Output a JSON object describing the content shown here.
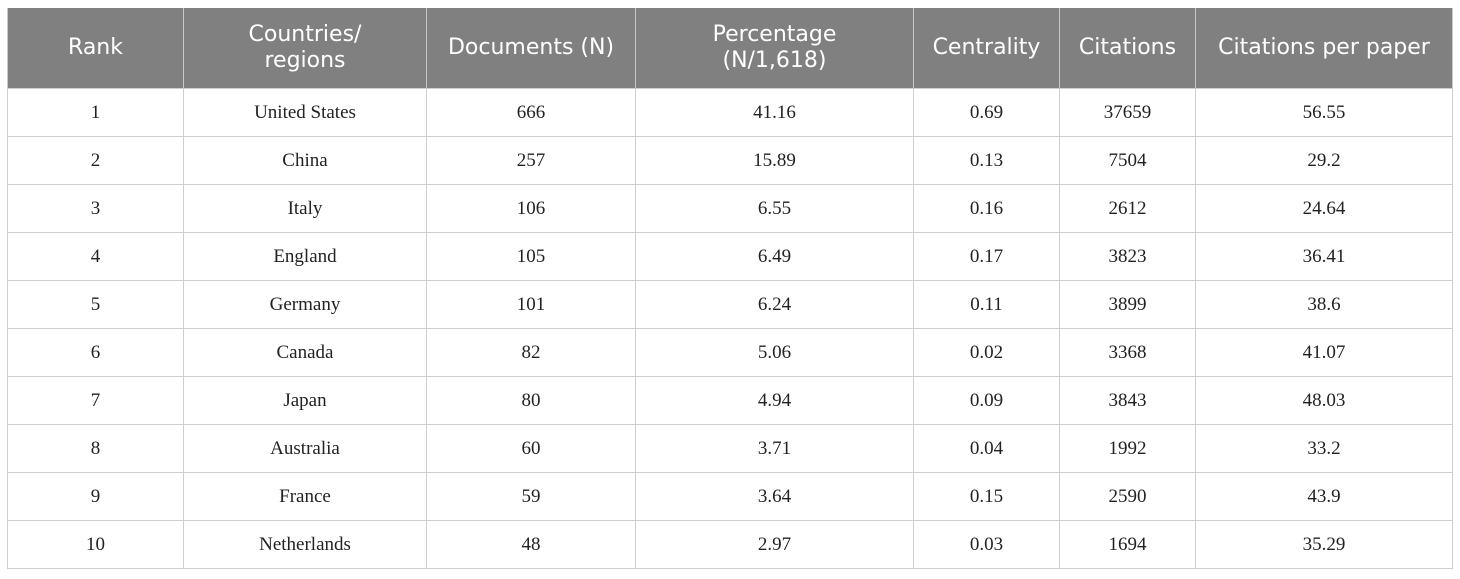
{
  "table": {
    "header": [
      "Rank",
      "Countries/\nregions",
      "Documents (N)",
      "Percentage\n(N/1,618)",
      "Centrality",
      "Citations",
      "Citations per paper"
    ],
    "rows": [
      [
        "1",
        "United States",
        "666",
        "41.16",
        "0.69",
        "37659",
        "56.55"
      ],
      [
        "2",
        "China",
        "257",
        "15.89",
        "0.13",
        "7504",
        "29.2"
      ],
      [
        "3",
        "Italy",
        "106",
        "6.55",
        "0.16",
        "2612",
        "24.64"
      ],
      [
        "4",
        "England",
        "105",
        "6.49",
        "0.17",
        "3823",
        "36.41"
      ],
      [
        "5",
        "Germany",
        "101",
        "6.24",
        "0.11",
        "3899",
        "38.6"
      ],
      [
        "6",
        "Canada",
        "82",
        "5.06",
        "0.02",
        "3368",
        "41.07"
      ],
      [
        "7",
        "Japan",
        "80",
        "4.94",
        "0.09",
        "3843",
        "48.03"
      ],
      [
        "8",
        "Australia",
        "60",
        "3.71",
        "0.04",
        "1992",
        "33.2"
      ],
      [
        "9",
        "France",
        "59",
        "3.64",
        "0.15",
        "2590",
        "43.9"
      ],
      [
        "10",
        "Netherlands",
        "48",
        "2.97",
        "0.03",
        "1694",
        "35.29"
      ]
    ]
  }
}
